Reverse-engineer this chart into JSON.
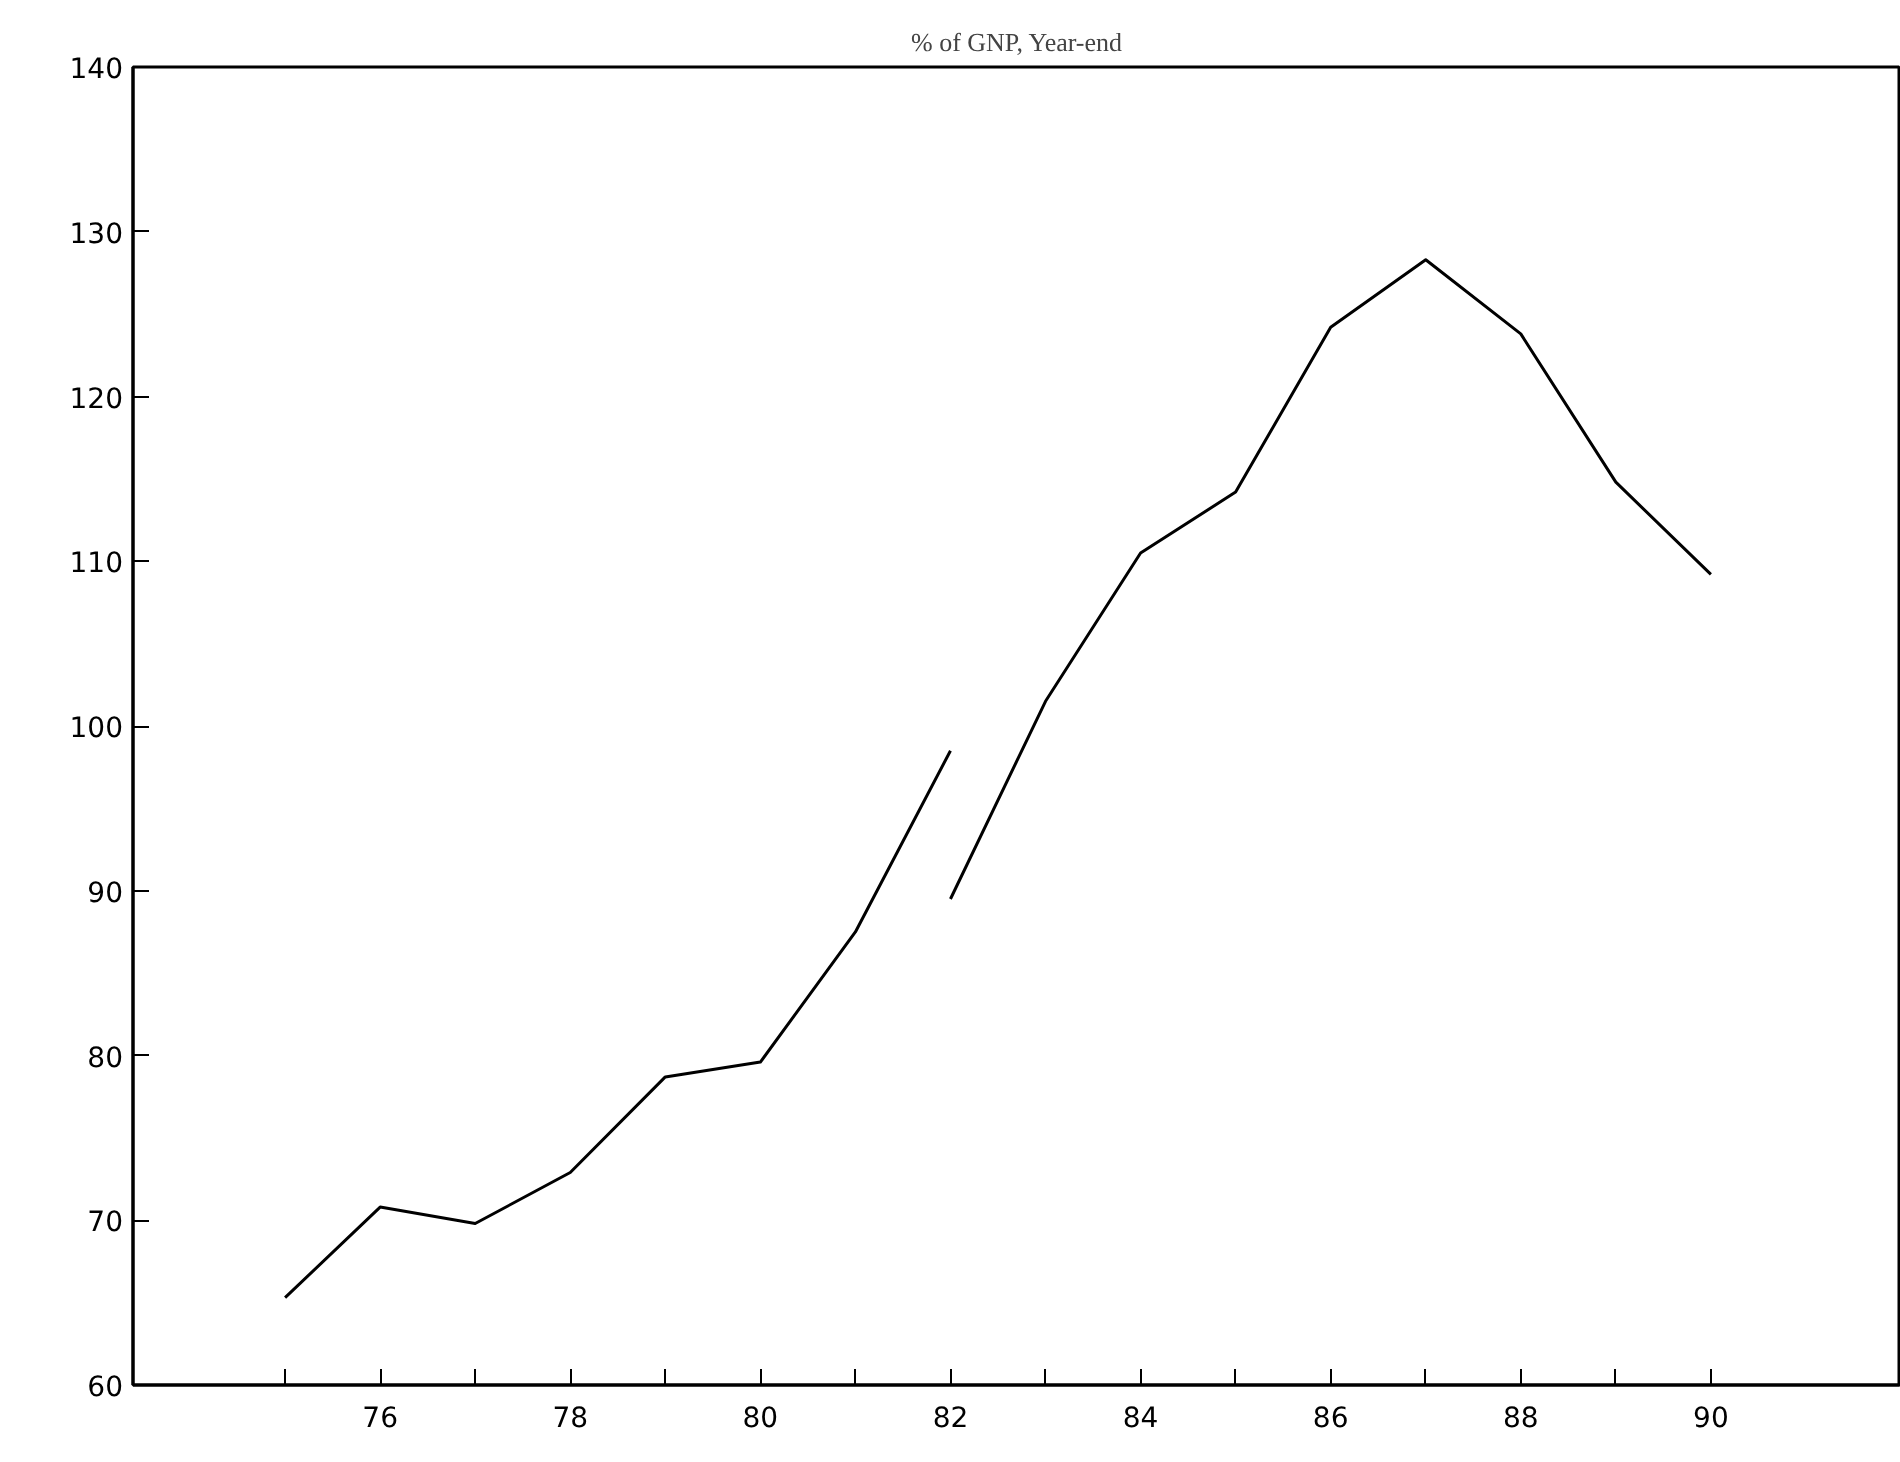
{
  "chart_data": {
    "type": "line",
    "title": "% of GNP, Year-end",
    "series": [
      {
        "color": "#000000",
        "x": [
          75,
          76,
          77,
          78,
          79,
          80,
          81,
          82
        ],
        "values": [
          65.3,
          70.8,
          69.8,
          72.9,
          78.7,
          79.6,
          87.5,
          98.5
        ]
      },
      {
        "color": "#000000",
        "x": [
          82,
          83,
          84,
          85,
          86,
          87,
          88,
          89,
          90
        ],
        "values": [
          89.5,
          101.5,
          110.5,
          114.2,
          124.2,
          128.3,
          123.8,
          114.8,
          109.2
        ]
      }
    ],
    "xlim": [
      73.4,
      92.0
    ],
    "ylim": [
      60,
      140
    ],
    "xticks": [
      {
        "value": 75,
        "label": null
      },
      76,
      {
        "value": 77,
        "label": null
      },
      78,
      {
        "value": 79,
        "label": null
      },
      80,
      {
        "value": 81,
        "label": null
      },
      82,
      {
        "value": 83,
        "label": null
      },
      84,
      {
        "value": 85,
        "label": null
      },
      86,
      {
        "value": 87,
        "label": null
      },
      88,
      {
        "value": 89,
        "label": null
      },
      90
    ],
    "yticks": [
      60,
      70,
      80,
      90,
      100,
      110,
      120,
      130,
      140
    ],
    "grid": false,
    "line_style": "solid",
    "marker": "none"
  }
}
